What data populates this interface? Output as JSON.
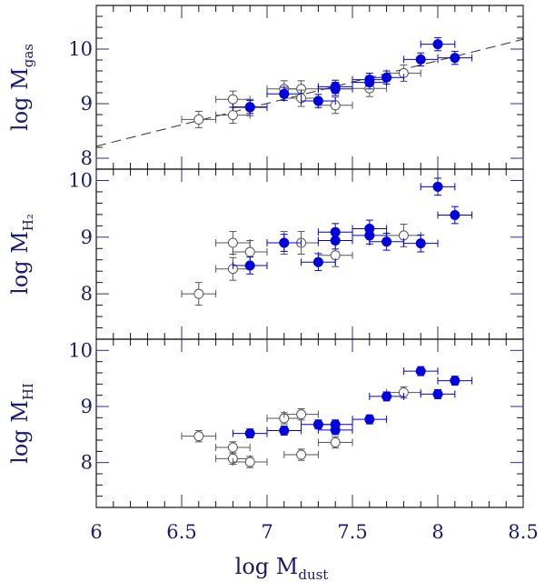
{
  "chart_data": [
    {
      "type": "scatter",
      "panel": "top",
      "ylabel": "log M",
      "ylabel_sub": "gas",
      "xlabel": "log M",
      "xlabel_sub": "dust",
      "xlim": [
        6,
        8.5
      ],
      "ylim": [
        7.8,
        10.8
      ],
      "xticks": [
        "6",
        "6.5",
        "7",
        "7.5",
        "8",
        "8.5"
      ],
      "yticks": [
        8,
        9,
        10
      ],
      "yticklabels": [
        "8",
        "9",
        "10"
      ],
      "fit_line": {
        "style": "dashed",
        "x": [
          6,
          8.5
        ],
        "y": [
          8.22,
          10.18
        ]
      },
      "series": [
        {
          "name": "open",
          "marker": "open-circle",
          "color": "#555555",
          "points": [
            [
              6.6,
              8.71
            ],
            [
              6.8,
              8.79
            ],
            [
              6.8,
              9.08
            ],
            [
              6.9,
              8.93
            ],
            [
              7.1,
              9.27
            ],
            [
              7.2,
              9.27
            ],
            [
              7.2,
              9.1
            ],
            [
              7.4,
              8.97
            ],
            [
              7.6,
              9.28
            ],
            [
              7.8,
              9.56
            ]
          ],
          "xerr": 0.1,
          "yerr": 0.15
        },
        {
          "name": "filled",
          "marker": "filled-circle",
          "color": "#0000dd",
          "points": [
            [
              6.9,
              8.94
            ],
            [
              7.1,
              9.18
            ],
            [
              7.3,
              9.05
            ],
            [
              7.4,
              9.27
            ],
            [
              7.4,
              9.31
            ],
            [
              7.6,
              9.39
            ],
            [
              7.6,
              9.44
            ],
            [
              7.7,
              9.48
            ],
            [
              7.9,
              9.81
            ],
            [
              8.0,
              10.09
            ],
            [
              8.1,
              9.84
            ]
          ],
          "xerr": 0.1,
          "yerr": 0.12
        }
      ]
    },
    {
      "type": "scatter",
      "panel": "middle",
      "ylabel": "log M",
      "ylabel_sub": "H₂",
      "xlim": [
        6,
        8.5
      ],
      "ylim": [
        7.2,
        10.2
      ],
      "yticks": [
        8,
        9,
        10
      ],
      "yticklabels": [
        "8",
        "9",
        "10"
      ],
      "series": [
        {
          "name": "open",
          "marker": "open-circle",
          "color": "#555555",
          "points": [
            [
              6.6,
              8.0
            ],
            [
              6.8,
              8.44
            ],
            [
              6.8,
              8.9
            ],
            [
              6.9,
              8.74
            ],
            [
              7.1,
              8.9
            ],
            [
              7.2,
              8.9
            ],
            [
              7.4,
              8.68
            ],
            [
              7.8,
              9.03
            ]
          ],
          "xerr": 0.1,
          "yerr": 0.2
        },
        {
          "name": "filled",
          "marker": "filled-circle",
          "color": "#0000dd",
          "points": [
            [
              6.9,
              8.5
            ],
            [
              7.1,
              8.9
            ],
            [
              7.3,
              8.56
            ],
            [
              7.4,
              8.94
            ],
            [
              7.4,
              9.09
            ],
            [
              7.6,
              9.03
            ],
            [
              7.6,
              9.15
            ],
            [
              7.7,
              8.92
            ],
            [
              7.9,
              8.89
            ],
            [
              8.0,
              9.89
            ],
            [
              8.1,
              9.39
            ]
          ],
          "xerr": 0.1,
          "yerr": 0.15
        }
      ]
    },
    {
      "type": "scatter",
      "panel": "bottom",
      "ylabel": "log M",
      "ylabel_sub": "HI",
      "xlim": [
        6,
        8.5
      ],
      "ylim": [
        7.2,
        10.2
      ],
      "yticks": [
        8,
        9,
        10
      ],
      "yticklabels": [
        "8",
        "9",
        "10"
      ],
      "series": [
        {
          "name": "open",
          "marker": "open-circle",
          "color": "#555555",
          "points": [
            [
              6.6,
              8.47
            ],
            [
              6.8,
              8.27
            ],
            [
              6.8,
              8.07
            ],
            [
              6.9,
              8.01
            ],
            [
              7.1,
              8.79
            ],
            [
              7.2,
              8.86
            ],
            [
              7.2,
              8.14
            ],
            [
              7.4,
              8.36
            ],
            [
              7.8,
              9.25
            ]
          ],
          "xerr": 0.1,
          "yerr": 0.1
        },
        {
          "name": "filled",
          "marker": "filled-circle",
          "color": "#0000dd",
          "points": [
            [
              6.9,
              8.52
            ],
            [
              7.1,
              8.57
            ],
            [
              7.3,
              8.68
            ],
            [
              7.4,
              8.58
            ],
            [
              7.4,
              8.68
            ],
            [
              7.6,
              8.77
            ],
            [
              7.7,
              9.18
            ],
            [
              7.9,
              9.63
            ],
            [
              8.0,
              9.22
            ],
            [
              8.1,
              9.46
            ]
          ],
          "xerr": 0.1,
          "yerr": 0.08
        }
      ]
    }
  ]
}
